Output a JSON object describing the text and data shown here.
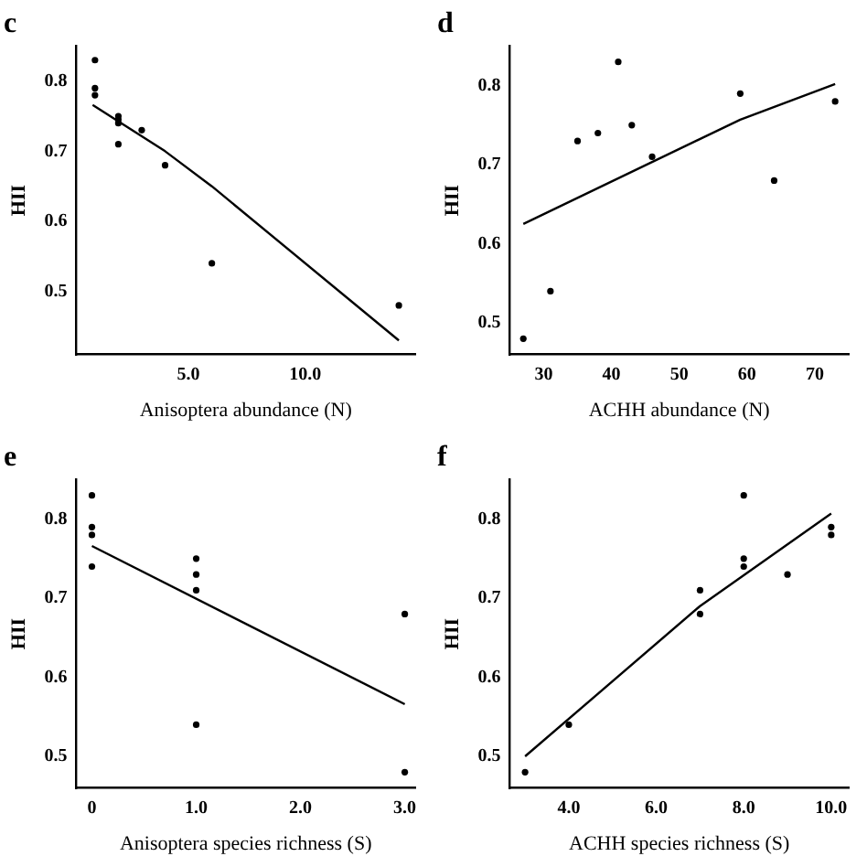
{
  "chart_data": [
    {
      "type": "scatter",
      "title": "c",
      "xlabel": "Anisoptera abundance (N)",
      "ylabel": "HII",
      "xlim": [
        0.2,
        14.7
      ],
      "ylim": [
        0.41,
        0.85
      ],
      "xticks": [
        {
          "value": 5,
          "label": "5.0"
        },
        {
          "value": 10,
          "label": "10.0"
        }
      ],
      "yticks": [
        {
          "value": 0.5,
          "label": "0.5"
        },
        {
          "value": 0.6,
          "label": "0.6"
        },
        {
          "value": 0.7,
          "label": "0.7"
        },
        {
          "value": 0.8,
          "label": "0.8"
        }
      ],
      "grid": false,
      "legend": false,
      "series": [
        {
          "type": "scatter",
          "color": "#000000",
          "marker": "circle",
          "x": [
            1,
            1,
            1,
            2,
            2,
            2,
            2,
            3,
            4,
            6,
            14
          ],
          "values": [
            0.83,
            0.79,
            0.78,
            0.75,
            0.745,
            0.74,
            0.71,
            0.73,
            0.68,
            0.54,
            0.48
          ]
        },
        {
          "type": "line",
          "color": "#000000",
          "marker": "none",
          "line_style": "solid",
          "x": [
            0.9,
            4,
            6,
            14
          ],
          "values": [
            0.766,
            0.7,
            0.65,
            0.43
          ]
        }
      ]
    },
    {
      "type": "scatter",
      "title": "d",
      "xlabel": "ACHH abundance (N)",
      "ylabel": "HII",
      "xlim": [
        25,
        75
      ],
      "ylim": [
        0.46,
        0.85
      ],
      "xticks": [
        30,
        40,
        50,
        60,
        70
      ],
      "yticks": [
        {
          "value": 0.5,
          "label": "0.5"
        },
        {
          "value": 0.6,
          "label": "0.6"
        },
        {
          "value": 0.7,
          "label": "0.7"
        },
        {
          "value": 0.8,
          "label": "0.8"
        }
      ],
      "grid": false,
      "legend": false,
      "series": [
        {
          "type": "scatter",
          "color": "#000000",
          "marker": "circle",
          "x": [
            27,
            31,
            35,
            38,
            41,
            43,
            46,
            59,
            64,
            73
          ],
          "values": [
            0.48,
            0.54,
            0.73,
            0.74,
            0.83,
            0.75,
            0.71,
            0.79,
            0.68,
            0.78
          ]
        },
        {
          "type": "line",
          "color": "#000000",
          "marker": "none",
          "line_style": "solid",
          "x": [
            27,
            59,
            73
          ],
          "values": [
            0.625,
            0.757,
            0.802
          ]
        }
      ]
    },
    {
      "type": "scatter",
      "title": "e",
      "xlabel": "Anisoptera species richness (S)",
      "ylabel": "HII",
      "xlim": [
        -0.15,
        3.1
      ],
      "ylim": [
        0.46,
        0.85
      ],
      "xticks": [
        0,
        {
          "value": 1,
          "label": "1.0"
        },
        {
          "value": 2,
          "label": "2.0"
        },
        {
          "value": 3,
          "label": "3.0"
        }
      ],
      "yticks": [
        {
          "value": 0.5,
          "label": "0.5"
        },
        {
          "value": 0.6,
          "label": "0.6"
        },
        {
          "value": 0.7,
          "label": "0.7"
        },
        {
          "value": 0.8,
          "label": "0.8"
        }
      ],
      "grid": false,
      "legend": false,
      "series": [
        {
          "type": "scatter",
          "color": "#000000",
          "marker": "circle",
          "x": [
            0,
            0,
            0,
            0,
            1,
            1,
            1,
            1,
            3,
            3
          ],
          "values": [
            0.83,
            0.79,
            0.78,
            0.74,
            0.75,
            0.73,
            0.71,
            0.54,
            0.68,
            0.48
          ]
        },
        {
          "type": "line",
          "color": "#000000",
          "marker": "none",
          "line_style": "solid",
          "x": [
            0,
            3
          ],
          "values": [
            0.766,
            0.566
          ]
        }
      ]
    },
    {
      "type": "scatter",
      "title": "f",
      "xlabel": "ACHH species richness (S)",
      "ylabel": "HII",
      "xlim": [
        2.65,
        10.4
      ],
      "ylim": [
        0.46,
        0.85
      ],
      "xticks": [
        {
          "value": 4,
          "label": "4.0"
        },
        {
          "value": 6,
          "label": "6.0"
        },
        {
          "value": 8,
          "label": "8.0"
        },
        {
          "value": 10,
          "label": "10.0"
        }
      ],
      "yticks": [
        {
          "value": 0.5,
          "label": "0.5"
        },
        {
          "value": 0.6,
          "label": "0.6"
        },
        {
          "value": 0.7,
          "label": "0.7"
        },
        {
          "value": 0.8,
          "label": "0.8"
        }
      ],
      "grid": false,
      "legend": false,
      "series": [
        {
          "type": "scatter",
          "color": "#000000",
          "marker": "circle",
          "x": [
            3,
            4,
            7,
            7,
            8,
            8,
            8,
            9,
            10,
            10
          ],
          "values": [
            0.48,
            0.54,
            0.71,
            0.68,
            0.83,
            0.75,
            0.74,
            0.73,
            0.79,
            0.78
          ]
        },
        {
          "type": "line",
          "color": "#000000",
          "marker": "none",
          "line_style": "solid",
          "x": [
            3,
            7,
            10
          ],
          "values": [
            0.5,
            0.69,
            0.807
          ]
        }
      ]
    }
  ]
}
